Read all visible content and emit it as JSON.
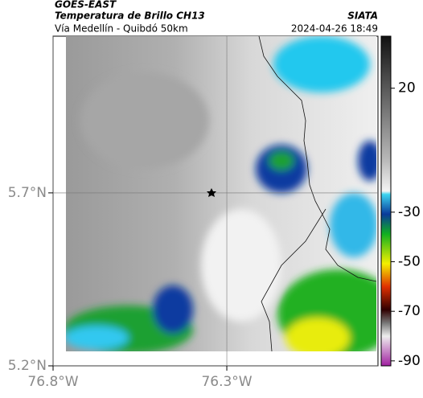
{
  "header": {
    "title": "GOES-EAST",
    "subtitle": "Temperatura de Brillo CH13",
    "source": "SIATA",
    "route": "Vía Medellín - Quibdó 50km",
    "datetime": "2024-04-26 18:49"
  },
  "map": {
    "lon_range": [
      -76.8,
      -75.865
    ],
    "lat_range": [
      5.2,
      6.153
    ],
    "lat_ticks": [
      {
        "value": 5.7,
        "label": "5.7°N"
      },
      {
        "value": 5.2,
        "label": "5.2°N"
      }
    ],
    "lon_ticks": [
      {
        "value": -76.8,
        "label": "76.8°W"
      },
      {
        "value": -76.3,
        "label": "76.3°W"
      }
    ]
  },
  "colorbar": {
    "range": [
      41,
      -92
    ],
    "ticks": [
      20,
      -30,
      -50,
      -70,
      -90
    ]
  }
}
